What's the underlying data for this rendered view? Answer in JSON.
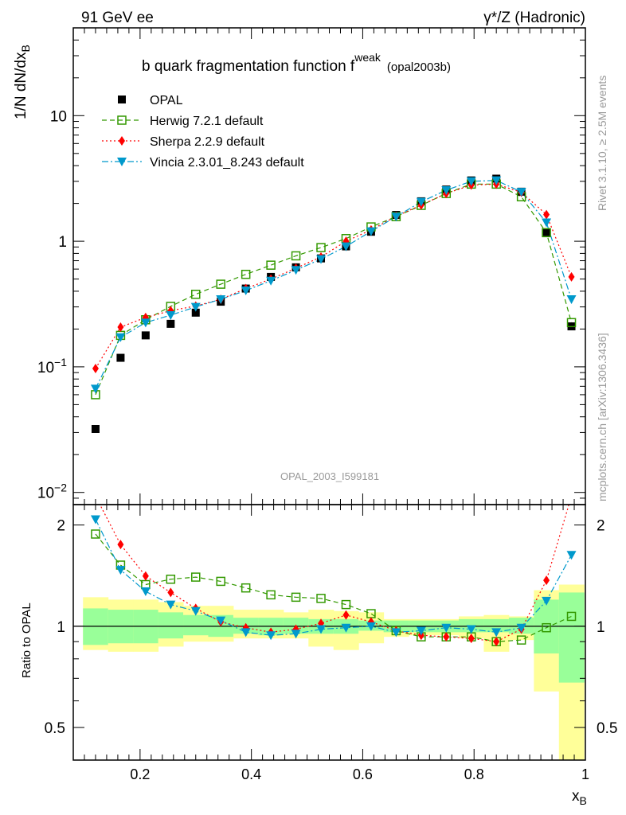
{
  "header": {
    "left": "91 GeV ee",
    "right": "γ*/Z (Hadronic)"
  },
  "side_labels": {
    "upper": "Rivet 3.1.10, ≥ 2.5M events",
    "lower": "mcplots.cern.ch [arXiv:1306.3436]"
  },
  "chart_data": {
    "type": "line",
    "title_main": "b quark fragmentation function f",
    "title_sup": "weak",
    "title_sub": "(opal2003b)",
    "watermark": "OPAL_2003_I599181",
    "xlabel_main": "x",
    "xlabel_sub": "B",
    "ylabel_main": "1/N dN/dx",
    "ylabel_sub": "B",
    "ratio_ylabel": "Ratio to OPAL",
    "xlim": [
      0.08,
      1.0
    ],
    "xticks": [
      "0.2",
      "0.4",
      "0.6",
      "0.8",
      "1"
    ],
    "main_ylog": true,
    "main_ylim": [
      0.008,
      50
    ],
    "main_yticks": [
      {
        "value": 10,
        "label": "10"
      },
      {
        "value": 1,
        "label": "1"
      },
      {
        "value": 0.1,
        "base": "10",
        "exp": "−1"
      },
      {
        "value": 0.01,
        "base": "10",
        "exp": "−2"
      }
    ],
    "ratio_ylog": true,
    "ratio_ylim": [
      0.4,
      2.3
    ],
    "ratio_yticks": [
      "2",
      "1",
      "0.5"
    ],
    "x": [
      0.12,
      0.165,
      0.21,
      0.255,
      0.3,
      0.345,
      0.39,
      0.435,
      0.48,
      0.525,
      0.57,
      0.615,
      0.66,
      0.705,
      0.75,
      0.795,
      0.84,
      0.885,
      0.93,
      0.975
    ],
    "data": {
      "name": "OPAL",
      "color": "#000000",
      "values": [
        0.032,
        0.118,
        0.178,
        0.22,
        0.27,
        0.33,
        0.42,
        0.52,
        0.62,
        0.73,
        0.91,
        1.19,
        1.62,
        2.08,
        2.58,
        3.05,
        3.15,
        2.48,
        1.18,
        0.21
      ]
    },
    "series": [
      {
        "name": "Herwig 7.2.1 default",
        "color": "#339900",
        "marker": "open-square",
        "dash": "6,4",
        "values": [
          0.06,
          0.178,
          0.237,
          0.303,
          0.378,
          0.455,
          0.545,
          0.645,
          0.765,
          0.89,
          1.05,
          1.3,
          1.57,
          1.93,
          2.4,
          2.85,
          2.85,
          2.26,
          1.17,
          0.225
        ],
        "ratio": [
          1.88,
          1.52,
          1.33,
          1.38,
          1.4,
          1.36,
          1.3,
          1.24,
          1.22,
          1.21,
          1.16,
          1.09,
          0.97,
          0.93,
          0.93,
          0.93,
          0.9,
          0.91,
          0.99,
          1.07
        ]
      },
      {
        "name": "Sherpa 2.2.9 default",
        "color": "#ff0000",
        "marker": "diamond",
        "dash": "2,3",
        "values": [
          0.097,
          0.207,
          0.247,
          0.28,
          0.305,
          0.345,
          0.42,
          0.5,
          0.61,
          0.75,
          1.0,
          1.23,
          1.58,
          1.94,
          2.4,
          2.8,
          2.85,
          2.45,
          1.63,
          0.52
        ],
        "ratio": [
          3.0,
          1.75,
          1.41,
          1.26,
          1.13,
          1.03,
          0.99,
          0.96,
          0.98,
          1.02,
          1.08,
          1.03,
          0.97,
          0.94,
          0.93,
          0.92,
          0.9,
          0.98,
          1.37,
          2.5
        ]
      },
      {
        "name": "Vincia 2.3.01_8.243 default",
        "color": "#0099cc",
        "marker": "triangle-down",
        "dash": "8,3,2,3",
        "values": [
          0.067,
          0.172,
          0.225,
          0.258,
          0.3,
          0.345,
          0.405,
          0.485,
          0.59,
          0.72,
          0.91,
          1.2,
          1.57,
          2.06,
          2.55,
          3.0,
          3.05,
          2.47,
          1.41,
          0.345
        ],
        "ratio": [
          2.08,
          1.47,
          1.27,
          1.16,
          1.11,
          1.04,
          0.96,
          0.94,
          0.95,
          0.98,
          0.99,
          1.0,
          0.96,
          0.97,
          0.99,
          0.98,
          0.96,
          0.99,
          1.19,
          1.63
        ]
      }
    ],
    "bands_green": [
      [
        0.88,
        1.13
      ],
      [
        0.89,
        1.12
      ],
      [
        0.89,
        1.12
      ],
      [
        0.92,
        1.1
      ],
      [
        0.94,
        1.08
      ],
      [
        0.93,
        1.08
      ],
      [
        0.95,
        1.06
      ],
      [
        0.94,
        1.06
      ],
      [
        0.95,
        1.06
      ],
      [
        0.95,
        1.05
      ],
      [
        0.95,
        1.05
      ],
      [
        0.97,
        1.04
      ],
      [
        0.96,
        1.04
      ],
      [
        0.96,
        1.04
      ],
      [
        0.96,
        1.04
      ],
      [
        0.96,
        1.05
      ],
      [
        0.96,
        1.05
      ],
      [
        0.95,
        1.06
      ],
      [
        0.83,
        1.2
      ],
      [
        0.68,
        1.26
      ]
    ],
    "bands_yellow": [
      [
        0.85,
        1.22
      ],
      [
        0.84,
        1.2
      ],
      [
        0.84,
        1.2
      ],
      [
        0.87,
        1.18
      ],
      [
        0.9,
        1.15
      ],
      [
        0.9,
        1.15
      ],
      [
        0.92,
        1.12
      ],
      [
        0.92,
        1.12
      ],
      [
        0.92,
        1.1
      ],
      [
        0.87,
        1.12
      ],
      [
        0.85,
        1.11
      ],
      [
        0.89,
        1.1
      ],
      [
        0.93,
        1.05
      ],
      [
        0.94,
        1.05
      ],
      [
        0.94,
        1.05
      ],
      [
        0.92,
        1.07
      ],
      [
        0.84,
        1.08
      ],
      [
        0.91,
        1.07
      ],
      [
        0.64,
        1.28
      ],
      [
        0.4,
        1.33
      ]
    ]
  }
}
